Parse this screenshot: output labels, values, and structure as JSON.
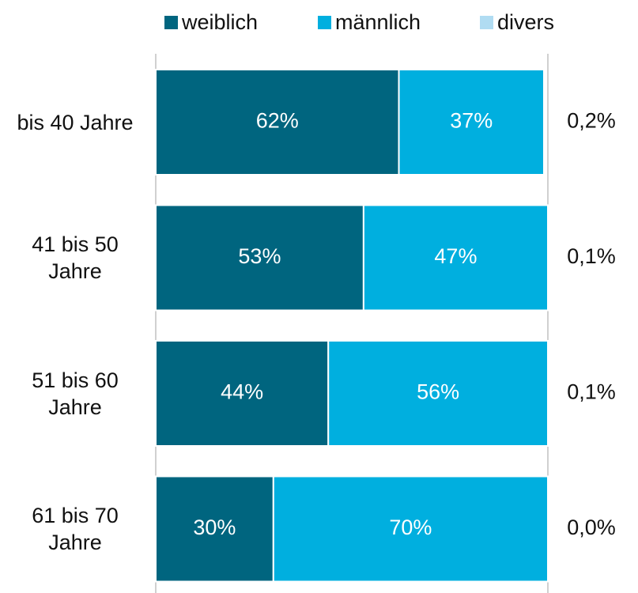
{
  "chart_data": {
    "type": "stacked_bar_horizontal_100",
    "categories": [
      "bis 40 Jahre",
      "41 bis 50 Jahre",
      "51 bis 60 Jahre",
      "61 bis 70 Jahre"
    ],
    "series": [
      {
        "name": "weiblich",
        "color": "#00657f",
        "values": [
          62,
          53,
          44,
          30
        ],
        "value_labels": [
          "62%",
          "53%",
          "44%",
          "30%"
        ]
      },
      {
        "name": "männlich",
        "color": "#00afdf",
        "values": [
          37,
          47,
          56,
          70
        ],
        "value_labels": [
          "37%",
          "47%",
          "56%",
          "70%"
        ]
      },
      {
        "name": "divers",
        "color": "#b0dcf2",
        "values": [
          0.2,
          0.1,
          0.1,
          0.0
        ],
        "value_labels": [
          "0,2%",
          "0,1%",
          "0,1%",
          "0,0%"
        ]
      }
    ],
    "xlim": [
      0,
      100
    ],
    "legend": "top"
  }
}
